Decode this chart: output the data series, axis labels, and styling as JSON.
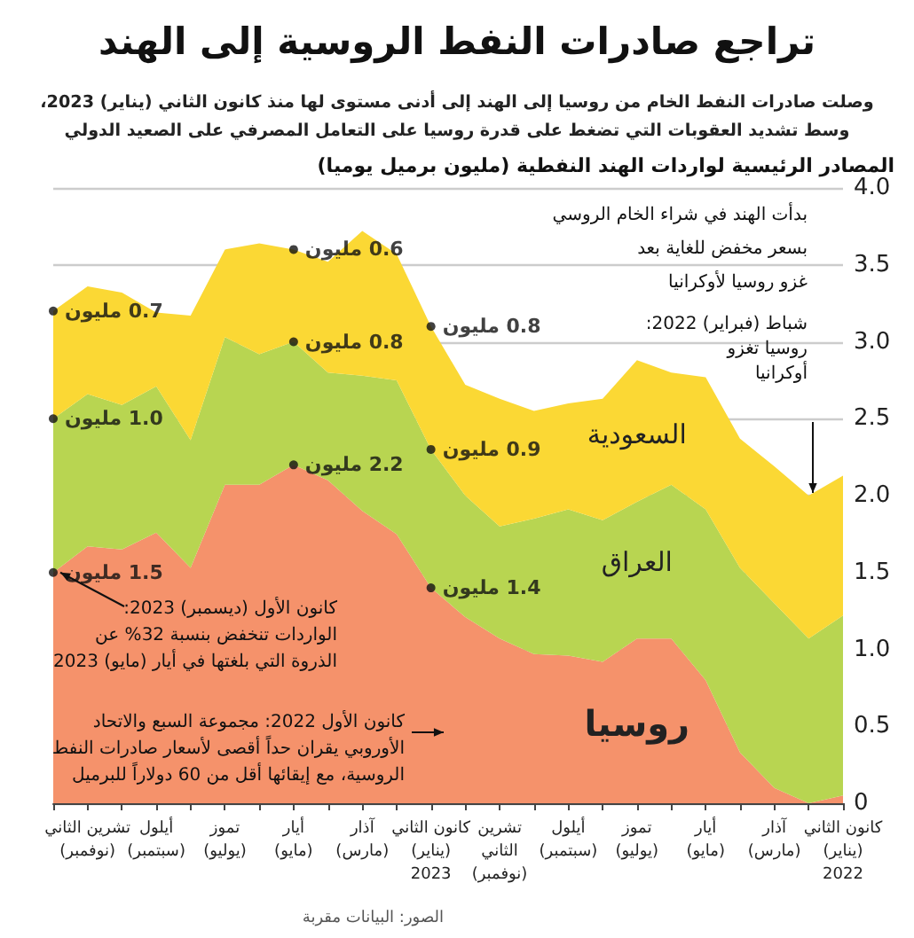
{
  "chart_data": {
    "type": "area",
    "title": "تراجع صادرات النفط الروسية إلى الهند",
    "subtitle": "وصلت صادرات النفط الخام من روسيا إلى الهند إلى أدنى مستوى لها منذ كانون الثاني (يناير) 2023،\nوسط تشديد العقوبات التي تضغط على قدرة روسيا على التعامل المصرفي على الصعيد الدولي",
    "ylabel": "المصادر الرئيسية لواردات الهند النفطية (مليون برميل يوميا)",
    "categories": [
      null,
      "تشرين الثاني\n(نوفمبر)",
      null,
      "أيلول\n(سبتمبر)",
      null,
      "تموز\n(يوليو)",
      null,
      "أيار\n(مايو)",
      null,
      "آذار\n(مارس)",
      null,
      "كانون الثاني\n(يناير)\n2023",
      null,
      "تشرين\nالثاني\n(نوفمبر)",
      null,
      "أيلول\n(سبتمبر)",
      null,
      "تموز\n(يوليو)",
      null,
      "أيار\n(مايو)",
      null,
      "آذار\n(مارس)",
      null,
      "كانون الثاني\n(يناير)\n2022"
    ],
    "stacked": true,
    "series": [
      {
        "name": "روسيا",
        "color": "#f5926b",
        "values": [
          1.5,
          1.67,
          1.65,
          1.76,
          1.53,
          2.07,
          2.07,
          2.2,
          2.1,
          1.9,
          1.75,
          1.4,
          1.21,
          1.07,
          0.97,
          0.96,
          0.92,
          1.07,
          1.07,
          0.8,
          0.33,
          0.1,
          0,
          0.05
        ],
        "value_labels": [
          "1.5 مليون",
          null,
          null,
          null,
          null,
          null,
          null,
          "2.2 مليون",
          null,
          null,
          null,
          "1.4 مليون",
          null,
          null,
          null,
          null,
          null,
          null,
          null,
          null,
          null,
          null,
          null,
          null
        ]
      },
      {
        "name": "العراق",
        "color": "#b8d551",
        "values": [
          1.0,
          0.99,
          0.94,
          0.95,
          0.83,
          0.96,
          0.85,
          0.8,
          0.7,
          0.88,
          1.0,
          0.9,
          0.79,
          0.73,
          0.88,
          0.95,
          0.92,
          0.89,
          1.0,
          1.11,
          1.2,
          1.2,
          1.07,
          1.17
        ],
        "value_labels": [
          "1.0 مليون",
          null,
          null,
          null,
          null,
          null,
          null,
          "0.8 مليون",
          null,
          null,
          null,
          "0.9 مليون",
          null,
          null,
          null,
          null,
          null,
          null,
          null,
          null,
          null,
          null,
          null,
          null
        ]
      },
      {
        "name": "السعودية",
        "color": "#fbd834",
        "values": [
          0.7,
          0.7,
          0.73,
          0.48,
          0.81,
          0.57,
          0.72,
          0.6,
          0.72,
          0.94,
          0.82,
          0.8,
          0.72,
          0.83,
          0.7,
          0.69,
          0.79,
          0.92,
          0.73,
          0.86,
          0.84,
          0.89,
          0.93,
          0.91
        ],
        "value_labels": [
          "0.7 مليون",
          null,
          null,
          null,
          null,
          null,
          null,
          "0.6 مليون",
          null,
          null,
          null,
          "0.8 مليون",
          null,
          null,
          null,
          null,
          null,
          null,
          null,
          null,
          null,
          null,
          null,
          null
        ]
      }
    ],
    "ylim": [
      0,
      4
    ],
    "yticks": [
      0,
      0.5,
      {
        "value": 1,
        "label": "1.0"
      },
      1.5,
      {
        "value": 2,
        "label": "2.0"
      },
      2.5,
      {
        "value": 3,
        "label": "3.0"
      },
      3.5,
      {
        "value": 4,
        "label": "4.0"
      }
    ],
    "grid": "y",
    "annotations": [
      "بدأت الهند في شراء الخام الروسي\nبسعر مخفض للغاية بعد\nغزو روسيا لأوكرانيا",
      "شباط (فبراير) 2022:\nروسيا تغزو\nأوكرانيا",
      {
        "text": "كانون الأول (ديسمبر) 2023:\nالواردات تنخفض بنسبة 32% عن\nالذروة التي بلغتها في أيار (مايو) 2023",
        "y": 1.5
      },
      "كانون الأول 2022: مجموعة السبع والاتحاد\nالأوروبي يقران حداً أقصى لأسعار صادرات النفط\nالروسية، مع إيقائها أقل من 60 دولاراً للبرميل",
      "الصور: البيانات مقربة"
    ]
  }
}
